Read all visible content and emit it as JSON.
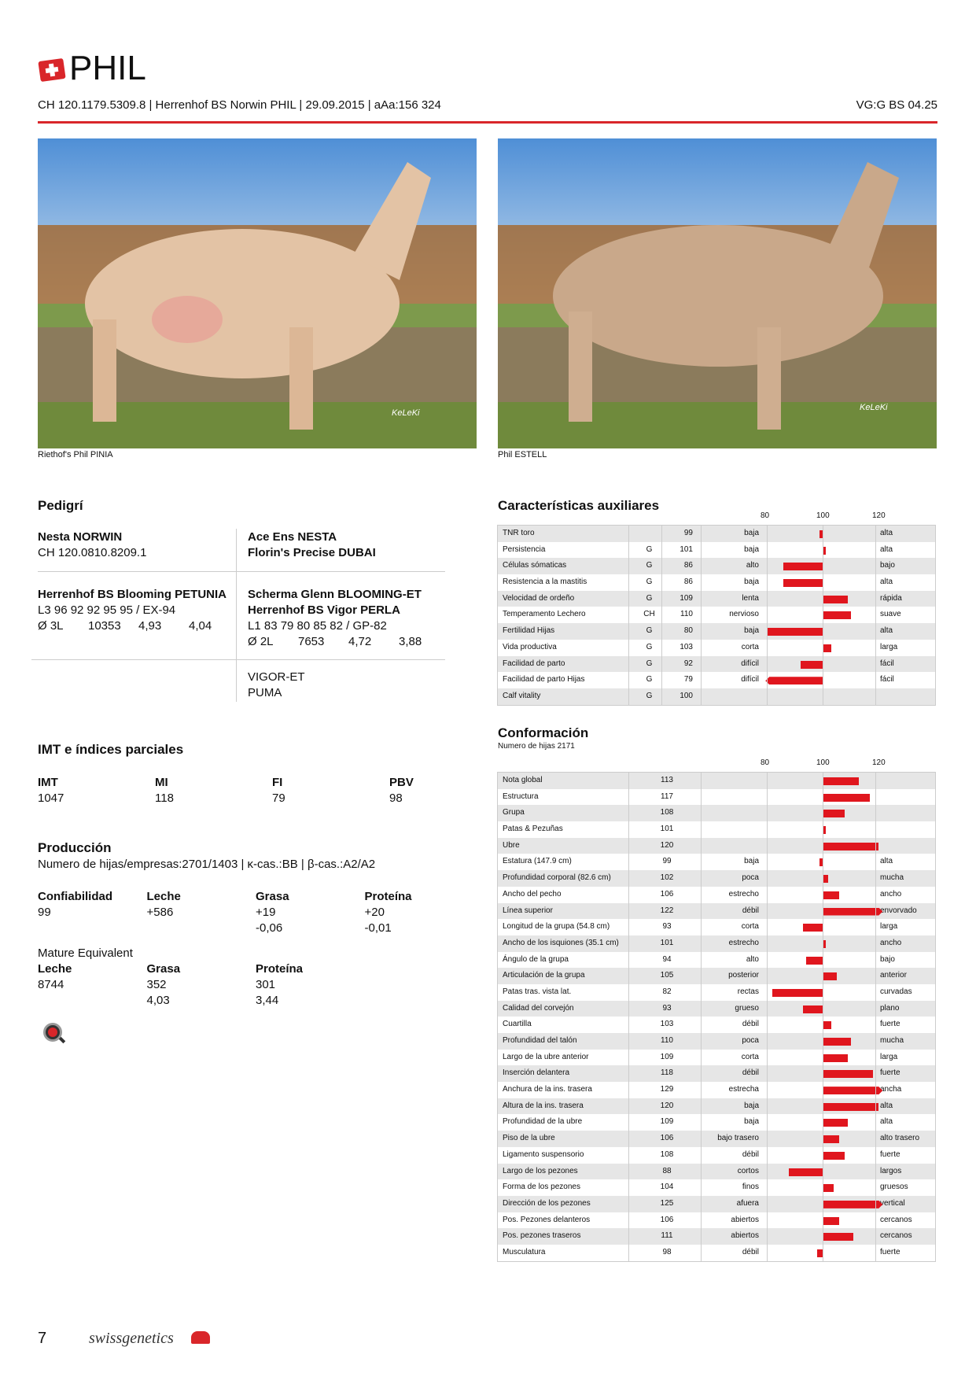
{
  "header": {
    "title": "PHIL",
    "subtitle": "CH 120.1179.5309.8 | Herrenhof BS Norwin PHIL | 29.09.2015 | aAa:156 324",
    "vg": "VG:G BS 04.25",
    "flag_icon": "swiss-flag-icon"
  },
  "photos": [
    {
      "caption": "Riethof's Phil PINIA",
      "watermark": "KeLeKi"
    },
    {
      "caption": "Phil ESTELL",
      "watermark": "KeLeKi"
    }
  ],
  "pedigree": {
    "title": "Pedigrí",
    "sire": {
      "name": "Nesta NORWIN",
      "id": "CH 120.0810.8209.1"
    },
    "sire_sire": "Ace Ens NESTA",
    "sire_dam": "Florin's Precise DUBAI",
    "dam": {
      "name": "Herrenhof BS Blooming PETUNIA",
      "line1": "L3 96 92 92 95 95 / EX-94",
      "avg": "Ø 3L",
      "milk": "10353",
      "fat": "4,93",
      "prot": "4,04"
    },
    "dam_sire": "Scherma Glenn BLOOMING-ET",
    "dam_dam": {
      "name": "Herrenhof BS Vigor PERLA",
      "line1": "L1 83 79 80 85 82 / GP-82",
      "avg": "Ø 2L",
      "milk": "7653",
      "fat": "4,72",
      "prot": "3,88"
    },
    "ddd_sire": "VIGOR-ET",
    "ddd_dam": "PUMA"
  },
  "imt": {
    "title": "IMT e índices parciales",
    "cols": [
      {
        "label": "IMT",
        "value": "1047"
      },
      {
        "label": "MI",
        "value": "118"
      },
      {
        "label": "FI",
        "value": "79"
      },
      {
        "label": "PBV",
        "value": "98"
      }
    ]
  },
  "production": {
    "title": "Producción",
    "info": "Numero de hijas/empresas:2701/1403 | κ-cas.:BB | β-cas.:A2/A2",
    "cols": [
      {
        "label": "Confiabilidad",
        "v1": "99",
        "v2": ""
      },
      {
        "label": "Leche",
        "v1": "+586",
        "v2": ""
      },
      {
        "label": "Grasa",
        "v1": "+19",
        "v2": "-0,06"
      },
      {
        "label": "Proteína",
        "v1": "+20",
        "v2": "-0,01"
      }
    ],
    "mature_title": "Mature Equivalent",
    "mature": [
      {
        "label": "Leche",
        "v1": "8744",
        "v2": ""
      },
      {
        "label": "Grasa",
        "v1": "352",
        "v2": "4,03"
      },
      {
        "label": "Proteína",
        "v1": "301",
        "v2": "3,44"
      }
    ]
  },
  "aux": {
    "title": "Características auxiliares",
    "ticks": [
      "80",
      "100",
      "120"
    ],
    "rows": [
      [
        "TNR toro",
        "",
        99,
        "baja",
        "alta"
      ],
      [
        "Persistencia",
        "G",
        101,
        "baja",
        "alta"
      ],
      [
        "Células sómaticas",
        "G",
        86,
        "alto",
        "bajo"
      ],
      [
        "Resistencia a la mastitis",
        "G",
        86,
        "baja",
        "alta"
      ],
      [
        "Velocidad de ordeño",
        "G",
        109,
        "lenta",
        "rápida"
      ],
      [
        "Temperamento Lechero",
        "CH",
        110,
        "nervioso",
        "suave"
      ],
      [
        "Fertilidad Hijas",
        "G",
        80,
        "baja",
        "alta"
      ],
      [
        "Vida productiva",
        "G",
        103,
        "corta",
        "larga"
      ],
      [
        "Facilidad de parto",
        "G",
        92,
        "difícil",
        "fácil"
      ],
      [
        "Facilidad de parto Hijas",
        "G",
        79,
        "difícil",
        "fácil"
      ],
      [
        "Calf vitality",
        "G",
        100,
        "",
        ""
      ]
    ]
  },
  "conf": {
    "title": "Conformación",
    "subtitle": "Numero de hijas 2171",
    "ticks": [
      "80",
      "100",
      "120"
    ],
    "rows": [
      [
        "Nota global",
        113,
        "",
        ""
      ],
      [
        "Estructura",
        117,
        "",
        ""
      ],
      [
        "Grupa",
        108,
        "",
        ""
      ],
      [
        "Patas & Pezuñas",
        101,
        "",
        ""
      ],
      [
        "Ubre",
        120,
        "",
        ""
      ],
      [
        "Estatura (147.9 cm)",
        99,
        "baja",
        "alta"
      ],
      [
        "Profundidad corporal (82.6 cm)",
        102,
        "poca",
        "mucha"
      ],
      [
        "Ancho del pecho",
        106,
        "estrecho",
        "ancho"
      ],
      [
        "Línea superior",
        122,
        "débil",
        "envorvado"
      ],
      [
        "Longitud de la grupa (54.8 cm)",
        93,
        "corta",
        "larga"
      ],
      [
        "Ancho de los isquiones (35.1 cm)",
        101,
        "estrecho",
        "ancho"
      ],
      [
        "Ángulo de la grupa",
        94,
        "alto",
        "bajo"
      ],
      [
        "Articulación de la grupa",
        105,
        "posterior",
        "anterior"
      ],
      [
        "Patas tras. vista lat.",
        82,
        "rectas",
        "curvadas"
      ],
      [
        "Calidad del corvejón",
        93,
        "grueso",
        "plano"
      ],
      [
        "Cuartilla",
        103,
        "débil",
        "fuerte"
      ],
      [
        "Profundidad del talón",
        110,
        "poca",
        "mucha"
      ],
      [
        "Largo de la ubre anterior",
        109,
        "corta",
        "larga"
      ],
      [
        "Inserción delantera",
        118,
        "débil",
        "fuerte"
      ],
      [
        "Anchura de la ins. trasera",
        129,
        "estrecha",
        "ancha"
      ],
      [
        "Altura de la ins. trasera",
        120,
        "baja",
        "alta"
      ],
      [
        "Profundidad de la ubre",
        109,
        "baja",
        "alta"
      ],
      [
        "Piso de la ubre",
        106,
        "bajo trasero",
        "alto trasero"
      ],
      [
        "Ligamento suspensorio",
        108,
        "débil",
        "fuerte"
      ],
      [
        "Largo de los pezones",
        88,
        "cortos",
        "largos"
      ],
      [
        "Forma de los pezones",
        104,
        "finos",
        "gruesos"
      ],
      [
        "Dirección de los pezones",
        125,
        "afuera",
        "vertical"
      ],
      [
        "Pos. Pezones delanteros",
        106,
        "abiertos",
        "cercanos"
      ],
      [
        "Pos. pezones traseros",
        111,
        "abiertos",
        "cercanos"
      ],
      [
        "Musculatura",
        98,
        "débil",
        "fuerte"
      ]
    ]
  },
  "footer": {
    "page": "7",
    "brand": "swissgenetics"
  },
  "colors": {
    "accent": "#d9262a",
    "bar": "#e0161e",
    "row_alt": "#e6e6e6"
  }
}
